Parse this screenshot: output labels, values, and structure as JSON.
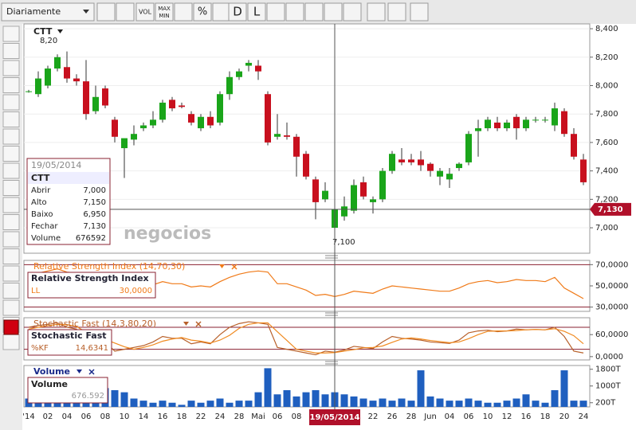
{
  "toolbar": {
    "period": "Diariamente",
    "vol": "VOL",
    "max_min": [
      "MAX",
      "MIN"
    ],
    "pct": "%",
    "d": "D",
    "l": "L"
  },
  "watermark": "negocios",
  "info": {
    "date": "19/05/2014",
    "symbol": "CTT",
    "rows": [
      [
        "Abrir",
        "7,000"
      ],
      [
        "Alto",
        "7,150"
      ],
      [
        "Baixo",
        "6,950"
      ],
      [
        "Fechar",
        "7,130"
      ],
      [
        "Volume",
        "676592"
      ]
    ]
  },
  "chart_data": [
    {
      "type": "candlestick",
      "title": "CTT",
      "annotations": [
        "8,20",
        "7,100"
      ],
      "crosshair_label": "7,130",
      "up_color": "#1aa51a",
      "down_color": "#c8101e",
      "open": [
        7.96,
        7.94,
        8.0,
        8.12,
        8.13,
        8.05,
        8.03,
        7.82,
        7.98,
        7.76,
        7.56,
        7.62,
        7.7,
        7.72,
        7.76,
        7.9,
        7.86,
        7.8,
        7.7,
        7.78,
        7.74,
        7.94,
        8.06,
        8.14,
        8.14,
        7.94,
        7.64,
        7.65,
        7.64,
        7.52,
        7.34,
        7.2,
        7.0,
        7.08,
        7.12,
        7.32,
        7.18,
        7.2,
        7.4,
        7.48,
        7.48,
        7.48,
        7.45,
        7.36,
        7.34,
        7.42,
        7.46,
        7.68,
        7.7,
        7.74,
        7.7,
        7.78,
        7.7,
        7.76,
        7.76,
        7.72,
        7.82,
        7.66,
        7.48
      ],
      "high": [
        7.97,
        8.1,
        8.14,
        8.22,
        8.24,
        8.08,
        8.18,
        8.0,
        8.0,
        7.78,
        7.62,
        7.72,
        7.74,
        7.82,
        7.9,
        7.92,
        7.88,
        7.82,
        7.8,
        7.82,
        7.96,
        8.1,
        8.12,
        8.18,
        8.18,
        7.96,
        7.8,
        7.74,
        7.66,
        7.54,
        7.36,
        7.32,
        7.15,
        7.22,
        7.34,
        7.36,
        7.22,
        7.42,
        7.54,
        7.56,
        7.52,
        7.54,
        7.46,
        7.42,
        7.42,
        7.46,
        7.68,
        7.76,
        7.78,
        7.78,
        7.76,
        7.8,
        7.78,
        7.78,
        7.78,
        7.88,
        7.84,
        7.7,
        7.52
      ],
      "low": [
        7.95,
        7.92,
        7.98,
        8.1,
        8.02,
        8.0,
        7.76,
        7.8,
        7.84,
        7.6,
        7.35,
        7.58,
        7.68,
        7.7,
        7.74,
        7.82,
        7.84,
        7.72,
        7.68,
        7.7,
        7.72,
        7.9,
        8.04,
        8.1,
        8.04,
        7.58,
        7.62,
        7.62,
        7.36,
        7.34,
        7.06,
        7.18,
        6.95,
        7.05,
        7.1,
        7.2,
        7.1,
        7.18,
        7.38,
        7.44,
        7.44,
        7.4,
        7.36,
        7.3,
        7.28,
        7.4,
        7.44,
        7.5,
        7.68,
        7.68,
        7.68,
        7.62,
        7.68,
        7.74,
        7.74,
        7.68,
        7.64,
        7.48,
        7.3
      ],
      "close": [
        7.96,
        8.05,
        8.12,
        8.2,
        8.05,
        8.03,
        7.8,
        7.92,
        7.86,
        7.64,
        7.63,
        7.66,
        7.72,
        7.76,
        7.88,
        7.84,
        7.85,
        7.74,
        7.78,
        7.72,
        7.94,
        8.06,
        8.1,
        8.16,
        8.1,
        7.6,
        7.66,
        7.64,
        7.5,
        7.36,
        7.18,
        7.26,
        7.13,
        7.15,
        7.3,
        7.22,
        7.2,
        7.4,
        7.52,
        7.46,
        7.46,
        7.44,
        7.4,
        7.4,
        7.38,
        7.45,
        7.66,
        7.7,
        7.76,
        7.7,
        7.74,
        7.7,
        7.76,
        7.76,
        7.76,
        7.84,
        7.66,
        7.5,
        7.32
      ],
      "ylim": [
        6.821,
        8.434
      ],
      "yticks": [
        {
          "value": 7,
          "label": "7,000"
        },
        {
          "value": 7.2,
          "label": "7,200"
        },
        {
          "value": 7.4,
          "label": "7,400"
        },
        {
          "value": 7.6,
          "label": "7,600"
        },
        {
          "value": 7.8,
          "label": "7,800"
        },
        {
          "value": 8,
          "label": "8,000"
        },
        {
          "value": 8.2,
          "label": "8,200"
        },
        {
          "value": 8.4,
          "label": "8,400"
        }
      ],
      "grid": true
    },
    {
      "type": "line",
      "title": "Relative Strength Index (14,70,30)",
      "legend_title": "Relative Strength Index",
      "levels": [
        70,
        30
      ],
      "series": [
        {
          "name": "LL",
          "legend_value": "30,0000",
          "color": "#f07a18",
          "values": [
            60,
            62,
            64,
            66,
            63,
            62,
            55,
            58,
            55,
            48,
            47,
            48,
            49,
            51,
            54,
            52,
            52,
            49,
            50,
            49,
            54,
            58,
            61,
            63,
            64,
            63,
            52,
            52,
            49,
            46,
            41,
            42,
            40,
            42,
            45,
            44,
            43,
            47,
            50,
            49,
            48,
            47,
            46,
            45,
            45,
            48,
            52,
            54,
            55,
            53,
            54,
            56,
            55,
            55,
            54,
            58,
            48,
            43,
            38
          ]
        }
      ],
      "ylim": [
        26,
        74
      ],
      "yticks": [
        {
          "value": 70,
          "label": "70,0000"
        },
        {
          "value": 50,
          "label": "50,0000"
        },
        {
          "value": 30,
          "label": "30,0000"
        }
      ]
    },
    {
      "type": "line",
      "title": "Stochastic Fast (14,3,80,20)",
      "legend_title": "Stochastic Fast",
      "levels": [
        80,
        20
      ],
      "series": [
        {
          "name": "%KF",
          "legend_value": "14,6341",
          "color": "#b8602a",
          "values": [
            80,
            85,
            88,
            92,
            80,
            75,
            45,
            55,
            40,
            15,
            20,
            25,
            30,
            40,
            55,
            50,
            50,
            35,
            40,
            35,
            60,
            80,
            90,
            95,
            92,
            88,
            25,
            20,
            15,
            10,
            5,
            15,
            12,
            18,
            28,
            25,
            22,
            40,
            55,
            50,
            48,
            45,
            40,
            38,
            36,
            45,
            65,
            70,
            72,
            68,
            70,
            75,
            73,
            74,
            73,
            80,
            55,
            15,
            10
          ]
        },
        {
          "color": "#f08a20",
          "values": [
            75,
            80,
            84,
            88,
            87,
            82,
            67,
            58,
            47,
            37,
            27,
            20,
            25,
            32,
            42,
            48,
            52,
            45,
            42,
            37,
            45,
            58,
            77,
            88,
            92,
            92,
            68,
            44,
            20,
            15,
            10,
            10,
            11,
            15,
            19,
            24,
            25,
            29,
            39,
            48,
            51,
            48,
            44,
            41,
            38,
            40,
            49,
            60,
            69,
            70,
            70,
            71,
            73,
            74,
            73,
            76,
            69,
            57,
            35
          ]
        }
      ],
      "ylim": [
        -9,
        106
      ],
      "yticks": [
        {
          "value": 60,
          "label": "60,0000"
        },
        {
          "value": 0,
          "label": "0,0000"
        }
      ]
    },
    {
      "type": "bar",
      "title": "Volume",
      "legend_title": "Volume",
      "legend_value": "676.592",
      "color": "#1f5fbf",
      "crosshair_label": "19/05/2014",
      "categories": [
        "'14",
        null,
        "02",
        null,
        "04",
        null,
        "06",
        null,
        "08",
        null,
        "10",
        null,
        "14",
        null,
        "16",
        null,
        "18",
        null,
        "22",
        null,
        "24",
        null,
        "28",
        null,
        "Mai",
        null,
        "06",
        null,
        "08",
        null,
        "12",
        null,
        "14",
        null,
        "16",
        null,
        "22",
        null,
        "26",
        null,
        "28",
        null,
        "Jun",
        null,
        "04",
        null,
        "06",
        null,
        "10",
        null,
        "12",
        null,
        "16",
        null,
        "18",
        null,
        "20",
        null,
        "24"
      ],
      "values": [
        400,
        600,
        700,
        400,
        300,
        500,
        600,
        700,
        900,
        800,
        700,
        400,
        300,
        200,
        300,
        200,
        100,
        300,
        200,
        300,
        400,
        200,
        300,
        300,
        700,
        1850,
        600,
        800,
        500,
        700,
        800,
        600,
        700,
        600,
        500,
        400,
        300,
        400,
        300,
        400,
        300,
        1750,
        500,
        400,
        300,
        300,
        400,
        300,
        200,
        200,
        300,
        400,
        600,
        300,
        200,
        800,
        1750,
        300,
        300
      ],
      "ylim": [
        0,
        1980
      ],
      "yticks": [
        {
          "value": 1800,
          "label": "1800T"
        },
        {
          "value": 1000,
          "label": "1000T"
        },
        {
          "value": 200,
          "label": "200T"
        }
      ]
    }
  ]
}
